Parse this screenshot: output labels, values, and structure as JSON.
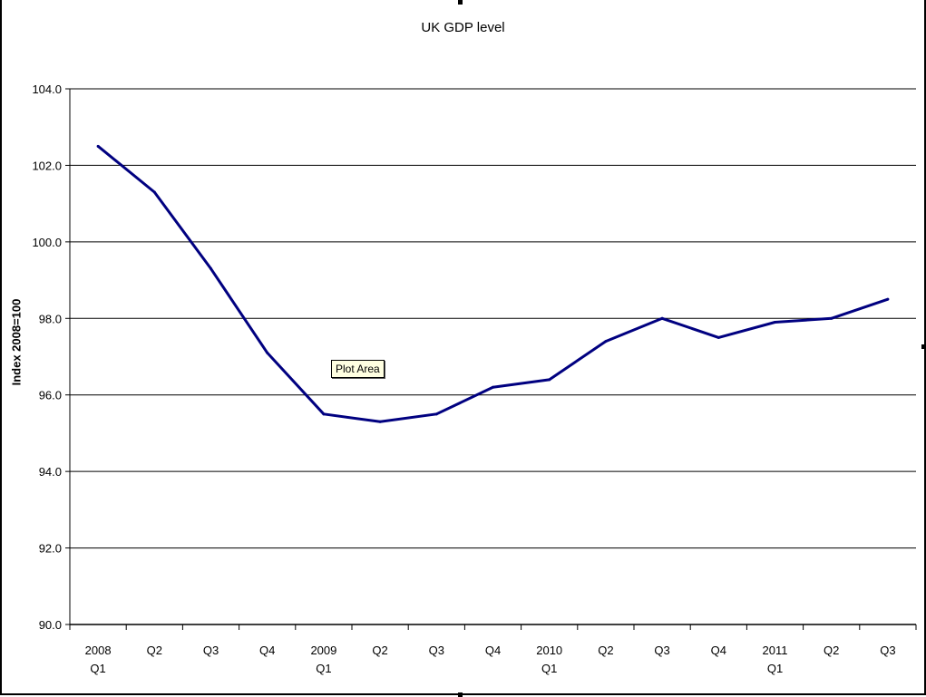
{
  "chart_data": {
    "type": "line",
    "title": "UK GDP level",
    "xlabel": "",
    "ylabel": "Index 2008=100",
    "ylim": [
      90,
      104
    ],
    "yticks": [
      "90.0",
      "92.0",
      "94.0",
      "96.0",
      "98.0",
      "100.0",
      "102.0",
      "104.0"
    ],
    "categories": [
      [
        "2008",
        "Q1"
      ],
      [
        "Q2"
      ],
      [
        "Q3"
      ],
      [
        "Q4"
      ],
      [
        "2009",
        "Q1"
      ],
      [
        "Q2"
      ],
      [
        "Q3"
      ],
      [
        "Q4"
      ],
      [
        "2010",
        "Q1"
      ],
      [
        "Q2"
      ],
      [
        "Q3"
      ],
      [
        "Q4"
      ],
      [
        "2011",
        "Q1"
      ],
      [
        "Q2"
      ],
      [
        "Q3"
      ]
    ],
    "series": [
      {
        "name": "UK GDP level",
        "color": "#000080",
        "values": [
          102.5,
          101.3,
          99.3,
          97.1,
          95.5,
          95.3,
          95.5,
          96.2,
          96.4,
          97.4,
          98.0,
          97.5,
          97.9,
          98.0,
          98.5
        ]
      }
    ],
    "grid": true,
    "legend": "none"
  },
  "tooltip": "Plot Area"
}
